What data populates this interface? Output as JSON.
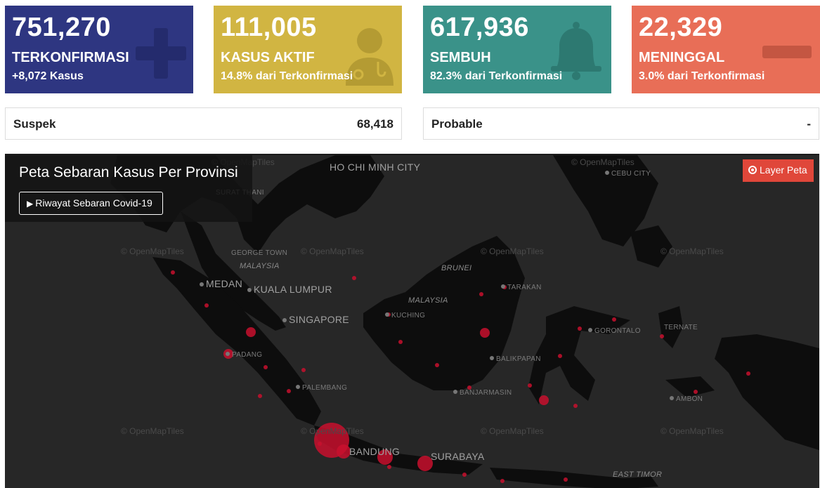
{
  "cards": [
    {
      "number": "751,270",
      "label": "TERKONFIRMASI",
      "sub": "+8,072 Kasus",
      "icon": "plus-icon",
      "color": "#2e3681"
    },
    {
      "number": "111,005",
      "label": "KASUS AKTIF",
      "sub": "14.8% dari Terkonfirmasi",
      "icon": "doctor-icon",
      "color": "#d1b542"
    },
    {
      "number": "617,936",
      "label": "SEMBUH",
      "sub": "82.3% dari Terkonfirmasi",
      "icon": "bell-icon",
      "color": "#3a9289"
    },
    {
      "number": "22,329",
      "label": "MENINGGAL",
      "sub": "3.0% dari Terkonfirmasi",
      "icon": "minus-icon",
      "color": "#e86e57"
    }
  ],
  "stats": [
    {
      "label": "Suspek",
      "value": "68,418"
    },
    {
      "label": "Probable",
      "value": "-"
    }
  ],
  "map": {
    "title": "Peta Sebaran Kasus Per Provinsi",
    "history_button": "Riwayat Sebaran Covid-19",
    "layer_button": "Layer Peta",
    "attribution": "© OpenMapTiles",
    "places": {
      "hcmc": "HO CHI MINH CITY",
      "cebu": "CEBU CITY",
      "surat": "SURAT THANI",
      "george": "GEORGE TOWN",
      "malaysia": "MALAYSIA",
      "brunei": "BRUNEI",
      "medan": "MEDAN",
      "kl": "KUALA LUMPUR",
      "tarakan": "TARAKAN",
      "malaysia2": "MALAYSIA",
      "kuching": "KUCHING",
      "singapore": "SINGAPORE",
      "gorontalo": "GORONTALO",
      "ternate": "TERNATE",
      "padang": "PADANG",
      "balikpapan": "BALIKPAPAN",
      "palembang": "PALEMBANG",
      "banjarmasin": "BANJARMASIN",
      "ambon": "AMBON",
      "bandung": "BANDUNG",
      "surabaya": "SURABAYA",
      "easttimor": "EAST TIMOR"
    }
  },
  "colors": {
    "marker": "#c8102e",
    "map_bg": "#272727",
    "land": "#0d0d0d"
  }
}
